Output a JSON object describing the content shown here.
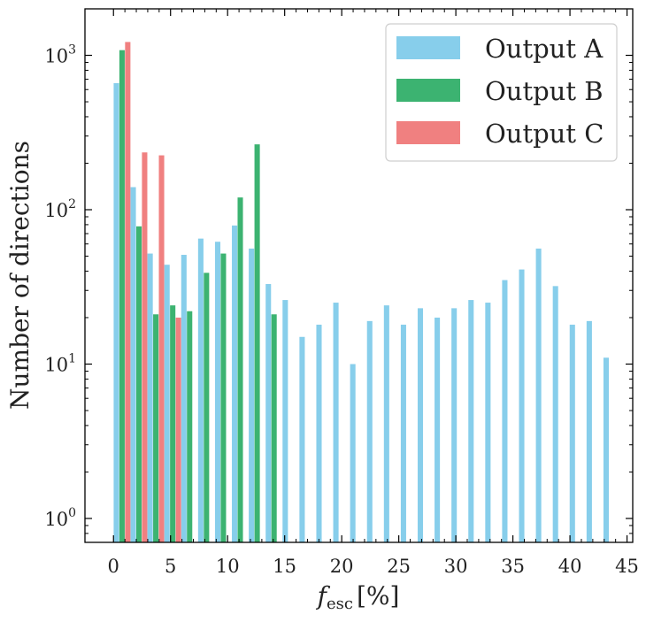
{
  "chart_data": {
    "type": "bar",
    "title": "",
    "xlabel": {
      "symbol": "f",
      "subscript": "esc",
      "unit": "[%]"
    },
    "ylabel": "Number of directions",
    "xlim": [
      -2.5,
      45.5
    ],
    "ylim": [
      0.7,
      2000
    ],
    "yscale": "log",
    "x_ticks": [
      0,
      5,
      10,
      15,
      20,
      25,
      30,
      35,
      40,
      45
    ],
    "y_ticks": [
      {
        "value": 1,
        "mantissa": "10",
        "exp": "0"
      },
      {
        "value": 10,
        "mantissa": "10",
        "exp": "1"
      },
      {
        "value": 100,
        "mantissa": "10",
        "exp": "2"
      },
      {
        "value": 1000,
        "mantissa": "10",
        "exp": "3"
      }
    ],
    "bin_width": 1.48,
    "legend_position": "top-right",
    "series": [
      {
        "name": "Output A",
        "color": "#87ceeb",
        "x": [
          0.25,
          1.73,
          3.21,
          4.69,
          6.17,
          7.65,
          9.13,
          10.61,
          12.09,
          13.57,
          15.05,
          16.53,
          18.01,
          19.49,
          20.97,
          22.45,
          23.93,
          25.41,
          26.89,
          28.37,
          29.85,
          31.33,
          32.81,
          34.29,
          35.77,
          37.25,
          38.73,
          40.21,
          41.69,
          43.17
        ],
        "values": [
          660,
          140,
          52,
          44,
          51,
          65,
          62,
          79,
          56,
          33,
          26,
          15,
          18,
          25,
          10,
          19,
          24,
          18,
          23,
          20,
          23,
          26,
          25,
          35,
          41,
          56,
          32,
          18,
          19,
          11
        ]
      },
      {
        "name": "Output B",
        "color": "#3cb371",
        "x": [
          0.75,
          2.23,
          3.71,
          5.19,
          6.67,
          8.15,
          9.63,
          11.11,
          12.59,
          14.07
        ],
        "values": [
          1080,
          78,
          21,
          24,
          22,
          39,
          52,
          120,
          265,
          21
        ]
      },
      {
        "name": "Output C",
        "color": "#f08080",
        "x": [
          1.25,
          2.73,
          4.21,
          5.69
        ],
        "values": [
          1220,
          235,
          225,
          20
        ]
      }
    ]
  }
}
